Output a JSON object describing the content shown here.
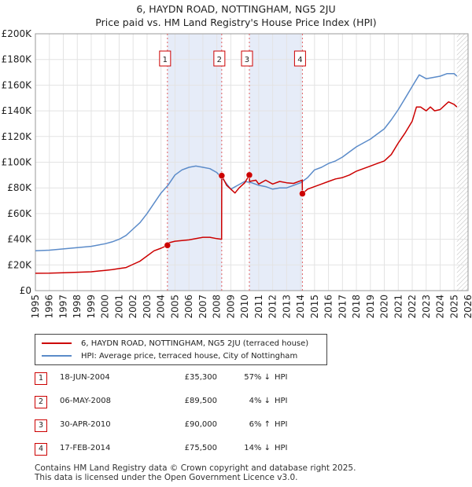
{
  "chart_data": {
    "type": "line",
    "title": "6, HAYDN ROAD, NOTTINGHAM, NG5 2JU",
    "subtitle": "Price paid vs. HM Land Registry's House Price Index (HPI)",
    "x_range": [
      1995,
      2026
    ],
    "ylim": [
      0,
      200000
    ],
    "y_ticks": [
      0,
      20000,
      40000,
      60000,
      80000,
      100000,
      120000,
      140000,
      160000,
      180000,
      200000
    ],
    "y_tick_labels": [
      "£0",
      "£20K",
      "£40K",
      "£60K",
      "£80K",
      "£100K",
      "£120K",
      "£140K",
      "£160K",
      "£180K",
      "£200K"
    ],
    "x_ticks": [
      1995,
      1996,
      1997,
      1998,
      1999,
      2000,
      2001,
      2002,
      2003,
      2004,
      2005,
      2006,
      2007,
      2008,
      2009,
      2010,
      2011,
      2012,
      2013,
      2014,
      2015,
      2016,
      2017,
      2018,
      2019,
      2020,
      2021,
      2022,
      2023,
      2024,
      2025,
      2026
    ],
    "x_tick_labels": [
      "1995",
      "1996",
      "1997",
      "1998",
      "1999",
      "2000",
      "2001",
      "2002",
      "2003",
      "2004",
      "2005",
      "2006",
      "2007",
      "2008",
      "2009",
      "2010",
      "2011",
      "2012",
      "2013",
      "2014",
      "2015",
      "2016",
      "2017",
      "2018",
      "2019",
      "2020",
      "2021",
      "2022",
      "2023",
      "2024",
      "2025",
      "2026"
    ],
    "grid": true,
    "shaded_periods": [
      [
        2004.46,
        2008.35
      ],
      [
        2010.33,
        2014.13
      ]
    ],
    "data_end_x": 2025.2,
    "series": [
      {
        "name": "6, HAYDN ROAD, NOTTINGHAM, NG5 2JU (terraced house)",
        "color": "#cc0000",
        "x": [
          1995,
          1996,
          1997,
          1998,
          1999,
          2000,
          2000.5,
          2001,
          2001.5,
          2002,
          2002.5,
          2003,
          2003.5,
          2004,
          2004.46,
          2004.47,
          2005,
          2006,
          2006.5,
          2007,
          2007.5,
          2008,
          2008.34,
          2008.35,
          2008.7,
          2009,
          2009.3,
          2009.6,
          2010,
          2010.33,
          2010.34,
          2010.8,
          2011,
          2011.5,
          2012,
          2012.5,
          2013,
          2013.5,
          2014.12,
          2014.13,
          2014.5,
          2015,
          2015.5,
          2016,
          2016.5,
          2017,
          2017.5,
          2018,
          2018.5,
          2019,
          2019.5,
          2020,
          2020.5,
          2021,
          2021.5,
          2022,
          2022.3,
          2022.6,
          2023,
          2023.3,
          2023.6,
          2024,
          2024.3,
          2024.6,
          2025,
          2025.2
        ],
        "y": [
          13500,
          13600,
          13900,
          14300,
          14700,
          15800,
          16300,
          17200,
          18000,
          20500,
          23000,
          27000,
          31000,
          33000,
          35300,
          37000,
          38500,
          39500,
          40500,
          41500,
          41500,
          40500,
          40000,
          89500,
          82000,
          79000,
          76000,
          80000,
          84000,
          90000,
          85000,
          86000,
          83000,
          86000,
          83000,
          85000,
          84000,
          83500,
          86000,
          75500,
          79000,
          81000,
          83000,
          85000,
          87000,
          88000,
          90000,
          93000,
          95000,
          97000,
          99000,
          101000,
          106000,
          115000,
          123000,
          132000,
          143000,
          143000,
          140000,
          143000,
          140000,
          141000,
          144000,
          147000,
          145000,
          143000
        ]
      },
      {
        "name": "HPI: Average price, terraced house, City of Nottingham",
        "color": "#5b8bc9",
        "x": [
          1995,
          1996,
          1997,
          1998,
          1999,
          2000,
          2000.5,
          2001,
          2001.5,
          2002,
          2002.5,
          2003,
          2003.5,
          2004,
          2004.5,
          2005,
          2005.5,
          2006,
          2006.5,
          2007,
          2007.5,
          2008,
          2008.5,
          2009,
          2009.5,
          2010,
          2010.5,
          2011,
          2011.5,
          2012,
          2012.5,
          2013,
          2013.5,
          2014,
          2014.5,
          2015,
          2015.5,
          2016,
          2016.5,
          2017,
          2017.5,
          2018,
          2018.5,
          2019,
          2019.5,
          2020,
          2020.5,
          2021,
          2021.5,
          2022,
          2022.5,
          2023,
          2023.5,
          2024,
          2024.5,
          2025,
          2025.2
        ],
        "y": [
          31000,
          31500,
          32500,
          33500,
          34500,
          36500,
          38000,
          40000,
          43000,
          48000,
          53000,
          60000,
          68000,
          76000,
          82000,
          90000,
          94000,
          96000,
          97000,
          96000,
          95000,
          92000,
          86000,
          79000,
          82000,
          85000,
          84000,
          82000,
          81000,
          79000,
          80000,
          80000,
          82000,
          84000,
          88000,
          94000,
          96000,
          99000,
          101000,
          104000,
          108000,
          112000,
          115000,
          118000,
          122000,
          126000,
          133000,
          141000,
          150000,
          159000,
          168000,
          165000,
          166000,
          167000,
          169000,
          169000,
          167000
        ]
      }
    ],
    "sales": [
      {
        "label": "1",
        "x": 2004.46,
        "price": 35300
      },
      {
        "label": "2",
        "x": 2008.35,
        "price": 89500
      },
      {
        "label": "3",
        "x": 2010.33,
        "price": 90000
      },
      {
        "label": "4",
        "x": 2014.13,
        "price": 75500
      }
    ]
  },
  "legend": {
    "property_label": "6, HAYDN ROAD, NOTTINGHAM, NG5 2JU (terraced house)",
    "hpi_label": "HPI: Average price, terraced house, City of Nottingham"
  },
  "sales_table": [
    {
      "num": "1",
      "date": "18-JUN-2004",
      "price": "£35,300",
      "pct": "57% ↓",
      "hpi": "HPI"
    },
    {
      "num": "2",
      "date": "06-MAY-2008",
      "price": "£89,500",
      "pct": "4% ↓",
      "hpi": "HPI"
    },
    {
      "num": "3",
      "date": "30-APR-2010",
      "price": "£90,000",
      "pct": "6% ↑",
      "hpi": "HPI"
    },
    {
      "num": "4",
      "date": "17-FEB-2014",
      "price": "£75,500",
      "pct": "14% ↓",
      "hpi": "HPI"
    }
  ],
  "footer": {
    "line1": "Contains HM Land Registry data © Crown copyright and database right 2025.",
    "line2": "This data is licensed under the Open Government Licence v3.0."
  }
}
